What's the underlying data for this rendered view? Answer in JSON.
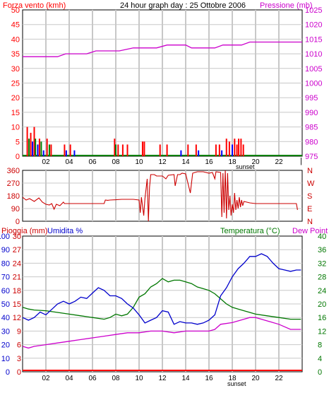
{
  "header": {
    "title": "24 hour graph day : 25 Ottobre 2006",
    "left_label": "Forza vento (kmh)",
    "right_label": "Pressione (mb)"
  },
  "colors": {
    "wind": "#ff0000",
    "wind_green": "#008000",
    "wind_blue": "#0000ff",
    "pressure": "#cc00cc",
    "direction": "#cc0000",
    "humidity": "#0000cc",
    "temperature": "#007700",
    "dewpoint": "#cc00cc",
    "rain": "#ff0000",
    "grid": "#c8c8c8"
  },
  "x_ticks": [
    "02",
    "04",
    "06",
    "08",
    "10",
    "12",
    "14",
    "16",
    "18",
    "20",
    "22"
  ],
  "x_tick_hours": [
    2,
    4,
    6,
    8,
    10,
    12,
    14,
    16,
    18,
    20,
    22
  ],
  "sunset_label": "sunset",
  "right_edge_tick": "|",
  "chart_data": [
    {
      "type": "bar+line",
      "name_left": "Forza vento (kmh)",
      "name_right": "Pressione (mb)",
      "x_range_hours": [
        0,
        24
      ],
      "y_left_range": [
        0,
        50
      ],
      "y_left_ticks": [
        "0",
        "5",
        "10",
        "15",
        "20",
        "25",
        "30",
        "35",
        "40",
        "45",
        "50"
      ],
      "y_right_range": [
        975,
        1025
      ],
      "y_right_ticks": [
        "975",
        "980",
        "985",
        "990",
        "995",
        "1000",
        "1005",
        "1010",
        "1015",
        "1020",
        "1025"
      ],
      "wind_bars": [
        {
          "x": 0.4,
          "v": 10,
          "c": "r"
        },
        {
          "x": 0.55,
          "v": 6,
          "c": "g"
        },
        {
          "x": 0.7,
          "v": 8,
          "c": "r"
        },
        {
          "x": 0.85,
          "v": 5,
          "c": "b"
        },
        {
          "x": 1.0,
          "v": 10,
          "c": "r"
        },
        {
          "x": 1.1,
          "v": 6,
          "c": "g"
        },
        {
          "x": 1.3,
          "v": 4,
          "c": "b"
        },
        {
          "x": 1.45,
          "v": 6,
          "c": "r"
        },
        {
          "x": 1.6,
          "v": 5,
          "c": "g"
        },
        {
          "x": 1.8,
          "v": 2,
          "c": "b"
        },
        {
          "x": 2.1,
          "v": 6,
          "c": "r"
        },
        {
          "x": 2.3,
          "v": 4,
          "c": "g"
        },
        {
          "x": 2.45,
          "v": 4,
          "c": "r"
        },
        {
          "x": 3.6,
          "v": 4,
          "c": "r"
        },
        {
          "x": 3.75,
          "v": 2,
          "c": "b"
        },
        {
          "x": 4.1,
          "v": 4,
          "c": "r"
        },
        {
          "x": 4.45,
          "v": 2,
          "c": "b"
        },
        {
          "x": 7.9,
          "v": 6,
          "c": "r"
        },
        {
          "x": 8.0,
          "v": 4,
          "c": "g"
        },
        {
          "x": 8.2,
          "v": 4,
          "c": "r"
        },
        {
          "x": 8.6,
          "v": 4,
          "c": "r"
        },
        {
          "x": 9.0,
          "v": 4,
          "c": "r"
        },
        {
          "x": 10.3,
          "v": 5,
          "c": "r"
        },
        {
          "x": 10.45,
          "v": 5,
          "c": "r"
        },
        {
          "x": 11.8,
          "v": 4,
          "c": "r"
        },
        {
          "x": 12.4,
          "v": 4,
          "c": "r"
        },
        {
          "x": 13.6,
          "v": 2,
          "c": "b"
        },
        {
          "x": 14.2,
          "v": 4,
          "c": "r"
        },
        {
          "x": 14.9,
          "v": 4,
          "c": "r"
        },
        {
          "x": 15.1,
          "v": 2,
          "c": "b"
        },
        {
          "x": 16.6,
          "v": 4,
          "c": "r"
        },
        {
          "x": 16.9,
          "v": 4,
          "c": "r"
        },
        {
          "x": 17.1,
          "v": 2,
          "c": "b"
        },
        {
          "x": 17.5,
          "v": 6,
          "c": "r"
        },
        {
          "x": 17.75,
          "v": 5,
          "c": "r"
        },
        {
          "x": 18.0,
          "v": 4,
          "c": "b"
        },
        {
          "x": 18.2,
          "v": 6,
          "c": "r"
        },
        {
          "x": 18.4,
          "v": 4,
          "c": "r"
        },
        {
          "x": 18.55,
          "v": 6,
          "c": "r"
        },
        {
          "x": 18.75,
          "v": 6,
          "c": "r"
        },
        {
          "x": 18.95,
          "v": 4,
          "c": "r"
        }
      ],
      "pressure": [
        [
          0,
          1009
        ],
        [
          3,
          1009
        ],
        [
          3.7,
          1010
        ],
        [
          5.5,
          1010
        ],
        [
          6.3,
          1011
        ],
        [
          8.3,
          1011
        ],
        [
          9.5,
          1012
        ],
        [
          11.5,
          1012
        ],
        [
          12.4,
          1013
        ],
        [
          14.0,
          1013
        ],
        [
          14.5,
          1012
        ],
        [
          16.5,
          1012
        ],
        [
          17.2,
          1013
        ],
        [
          18.8,
          1013
        ],
        [
          19.5,
          1014
        ],
        [
          24,
          1014
        ]
      ]
    },
    {
      "type": "line",
      "name_left": "direction",
      "x_range_hours": [
        0,
        24
      ],
      "y_left_range": [
        0,
        360
      ],
      "y_left_ticks": [
        "0",
        "90",
        "180",
        "270",
        "360"
      ],
      "y_right_ticks": [
        "N",
        "E",
        "S",
        "W",
        "N"
      ],
      "direction": [
        [
          0,
          170
        ],
        [
          0.3,
          150
        ],
        [
          0.6,
          160
        ],
        [
          1.0,
          140
        ],
        [
          1.4,
          165
        ],
        [
          1.7,
          135
        ],
        [
          2.0,
          120
        ],
        [
          2.3,
          115
        ],
        [
          2.5,
          125
        ],
        [
          2.7,
          85
        ],
        [
          2.9,
          120
        ],
        [
          3.2,
          110
        ],
        [
          3.5,
          135
        ],
        [
          3.6,
          125
        ],
        [
          4.0,
          125
        ],
        [
          5.0,
          125
        ],
        [
          6.0,
          125
        ],
        [
          7.0,
          125
        ],
        [
          7.1,
          150
        ],
        [
          7.3,
          148
        ],
        [
          7.5,
          150
        ],
        [
          8.0,
          152
        ],
        [
          8.5,
          155
        ],
        [
          9.0,
          155
        ],
        [
          9.5,
          155
        ],
        [
          10.0,
          150
        ],
        [
          10.1,
          60
        ],
        [
          10.2,
          170
        ],
        [
          10.4,
          40
        ],
        [
          10.5,
          160
        ],
        [
          10.7,
          300
        ],
        [
          10.8,
          0
        ],
        [
          10.9,
          240
        ],
        [
          11.0,
          330
        ],
        [
          11.3,
          330
        ],
        [
          11.5,
          320
        ],
        [
          12.0,
          320
        ],
        [
          12.3,
          300
        ],
        [
          12.5,
          325
        ],
        [
          13.0,
          330
        ],
        [
          13.1,
          250
        ],
        [
          13.3,
          330
        ],
        [
          13.5,
          330
        ],
        [
          13.7,
          340
        ],
        [
          14.0,
          335
        ],
        [
          14.4,
          200
        ],
        [
          14.6,
          340
        ],
        [
          15.0,
          350
        ],
        [
          15.5,
          350
        ],
        [
          16.0,
          340
        ],
        [
          16.3,
          345
        ],
        [
          16.5,
          300
        ],
        [
          16.6,
          350
        ],
        [
          17.0,
          345
        ],
        [
          17.1,
          30
        ],
        [
          17.2,
          340
        ],
        [
          17.3,
          60
        ],
        [
          17.4,
          360
        ],
        [
          17.5,
          20
        ],
        [
          17.6,
          340
        ],
        [
          17.7,
          80
        ],
        [
          17.8,
          180
        ],
        [
          17.9,
          40
        ],
        [
          18.0,
          120
        ],
        [
          18.1,
          60
        ],
        [
          18.2,
          200
        ],
        [
          18.3,
          80
        ],
        [
          18.4,
          150
        ],
        [
          18.5,
          90
        ],
        [
          18.6,
          170
        ],
        [
          18.7,
          100
        ],
        [
          18.8,
          150
        ],
        [
          18.9,
          110
        ],
        [
          19.0,
          140
        ],
        [
          19.5,
          130
        ],
        [
          20.0,
          125
        ],
        [
          21.0,
          125
        ],
        [
          22.0,
          125
        ],
        [
          23.5,
          125
        ],
        [
          23.6,
          80
        ]
      ]
    },
    {
      "type": "line",
      "label_rain": "Pioggia (mm)",
      "label_humidity": "Umidita %",
      "label_temperature": "Temperatura (°C)",
      "label_dewpoint": "Dew Point",
      "x_range_hours": [
        0,
        24
      ],
      "rain_ticks": [
        "0",
        "3",
        "6",
        "9",
        "12",
        "15",
        "18",
        "21",
        "24",
        "27",
        "30"
      ],
      "humidity_ticks": [
        "0",
        "10",
        "20",
        "30",
        "40",
        "50",
        "60",
        "70",
        "80",
        "90",
        "100"
      ],
      "temp_range": [
        0,
        40
      ],
      "temp_ticks": [
        "0",
        "4",
        "8",
        "12",
        "16",
        "20",
        "24",
        "28",
        "32",
        "36",
        "40"
      ],
      "humidity": [
        [
          0,
          40
        ],
        [
          0.5,
          38
        ],
        [
          1.0,
          40
        ],
        [
          1.5,
          44
        ],
        [
          2.0,
          42
        ],
        [
          2.5,
          46
        ],
        [
          3.0,
          50
        ],
        [
          3.5,
          52
        ],
        [
          4.0,
          50
        ],
        [
          4.5,
          52
        ],
        [
          5.0,
          55
        ],
        [
          5.5,
          54
        ],
        [
          6.0,
          58
        ],
        [
          6.5,
          62
        ],
        [
          7.0,
          60
        ],
        [
          7.5,
          56
        ],
        [
          8.0,
          56
        ],
        [
          8.5,
          54
        ],
        [
          9.0,
          50
        ],
        [
          9.5,
          47
        ],
        [
          10.0,
          42
        ],
        [
          10.5,
          36
        ],
        [
          11.0,
          38
        ],
        [
          11.5,
          40
        ],
        [
          12.0,
          45
        ],
        [
          12.5,
          44
        ],
        [
          13.0,
          35
        ],
        [
          13.5,
          37
        ],
        [
          14.0,
          36
        ],
        [
          14.5,
          36
        ],
        [
          15.0,
          35
        ],
        [
          15.5,
          36
        ],
        [
          16.0,
          38
        ],
        [
          16.5,
          42
        ],
        [
          17.0,
          56
        ],
        [
          17.5,
          62
        ],
        [
          18.0,
          70
        ],
        [
          18.5,
          76
        ],
        [
          19.0,
          80
        ],
        [
          19.5,
          85
        ],
        [
          20.0,
          85
        ],
        [
          20.5,
          87
        ],
        [
          21.0,
          85
        ],
        [
          21.5,
          80
        ],
        [
          22.0,
          76
        ],
        [
          22.5,
          75
        ],
        [
          23.0,
          74
        ],
        [
          23.5,
          75
        ],
        [
          23.9,
          75
        ]
      ],
      "temperature": [
        [
          0,
          19
        ],
        [
          0.5,
          18.5
        ],
        [
          1.0,
          18.2
        ],
        [
          2.0,
          18
        ],
        [
          3.0,
          17.5
        ],
        [
          4.0,
          17
        ],
        [
          5.0,
          16.5
        ],
        [
          6.0,
          16
        ],
        [
          7.0,
          15.5
        ],
        [
          7.5,
          16
        ],
        [
          8.0,
          17
        ],
        [
          8.5,
          16.5
        ],
        [
          9.0,
          17
        ],
        [
          9.5,
          19
        ],
        [
          10.0,
          22
        ],
        [
          10.5,
          23
        ],
        [
          11.0,
          25
        ],
        [
          11.5,
          26
        ],
        [
          12.0,
          27.5
        ],
        [
          12.5,
          26.5
        ],
        [
          13.0,
          27
        ],
        [
          13.5,
          27
        ],
        [
          14.0,
          26.5
        ],
        [
          14.5,
          26
        ],
        [
          15.0,
          25
        ],
        [
          15.5,
          24.5
        ],
        [
          16.0,
          24
        ],
        [
          16.5,
          23
        ],
        [
          17.0,
          21.5
        ],
        [
          17.5,
          20
        ],
        [
          18.0,
          19
        ],
        [
          18.5,
          18.5
        ],
        [
          19.0,
          18
        ],
        [
          19.5,
          17.5
        ],
        [
          20.0,
          17
        ],
        [
          21.0,
          16.5
        ],
        [
          22.0,
          16
        ],
        [
          23.0,
          15.5
        ],
        [
          23.9,
          15.5
        ]
      ],
      "dewpoint": [
        [
          0,
          7.5
        ],
        [
          0.5,
          7
        ],
        [
          1.0,
          7.5
        ],
        [
          2.0,
          8
        ],
        [
          3.0,
          8.5
        ],
        [
          4.0,
          9
        ],
        [
          5.0,
          9.5
        ],
        [
          6.0,
          10
        ],
        [
          7.0,
          10.5
        ],
        [
          8.0,
          11
        ],
        [
          9.0,
          11.5
        ],
        [
          10.0,
          11.5
        ],
        [
          11.0,
          12
        ],
        [
          12.0,
          12
        ],
        [
          13.0,
          11.5
        ],
        [
          14.0,
          12
        ],
        [
          15.0,
          12
        ],
        [
          16.0,
          12
        ],
        [
          16.5,
          12.5
        ],
        [
          17.0,
          14
        ],
        [
          18.0,
          14.5
        ],
        [
          19.0,
          15.5
        ],
        [
          19.5,
          16
        ],
        [
          20.0,
          16
        ],
        [
          20.5,
          15.5
        ],
        [
          21.0,
          15
        ],
        [
          22.0,
          14
        ],
        [
          23.0,
          12.5
        ],
        [
          23.9,
          12.5
        ]
      ],
      "rain": [
        [
          0,
          0
        ],
        [
          24,
          0
        ]
      ]
    }
  ]
}
